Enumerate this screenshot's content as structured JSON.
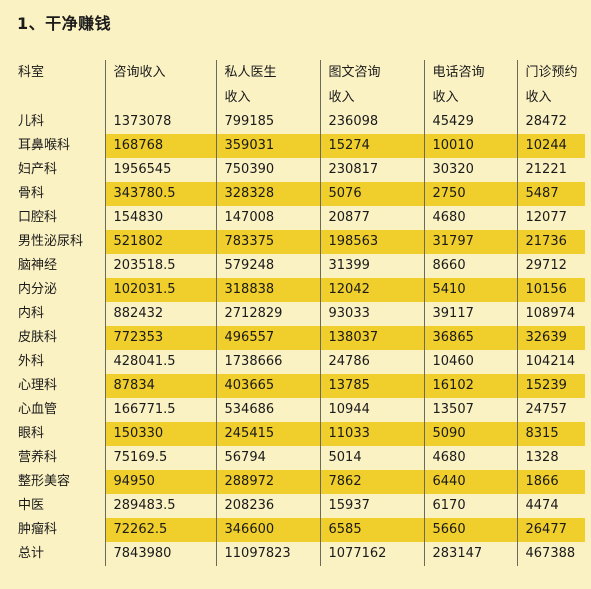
{
  "title": "1、干净赚钱",
  "columns": [
    {
      "line1": "科室",
      "line2": ""
    },
    {
      "line1": "咨询收入",
      "line2": ""
    },
    {
      "line1": "私人医生",
      "line2": "收入"
    },
    {
      "line1": "图文咨询",
      "line2": "收入"
    },
    {
      "line1": "电话咨询",
      "line2": "收入"
    },
    {
      "line1": "门诊预约",
      "line2": "收入"
    }
  ],
  "rows": [
    [
      "儿科",
      "1373078",
      "799185",
      "236098",
      "45429",
      "28472"
    ],
    [
      "耳鼻喉科",
      "168768",
      "359031",
      "15274",
      "10010",
      "10244"
    ],
    [
      "妇产科",
      "1956545",
      "750390",
      "230817",
      "30320",
      "21221"
    ],
    [
      "骨科",
      "343780.5",
      "328328",
      "5076",
      "2750",
      "5487"
    ],
    [
      "口腔科",
      "154830",
      "147008",
      "20877",
      "4680",
      "12077"
    ],
    [
      "男性泌尿科",
      "521802",
      "783375",
      "198563",
      "31797",
      "21736"
    ],
    [
      "脑神经",
      "203518.5",
      "579248",
      "31399",
      "8660",
      "29712"
    ],
    [
      "内分泌",
      "102031.5",
      "318838",
      "12042",
      "5410",
      "10156"
    ],
    [
      "内科",
      "882432",
      "2712829",
      "93033",
      "39117",
      "108974"
    ],
    [
      "皮肤科",
      "772353",
      "496557",
      "138037",
      "36865",
      "32639"
    ],
    [
      "外科",
      "428041.5",
      "1738666",
      "24786",
      "10460",
      "104214"
    ],
    [
      "心理科",
      "87834",
      "403665",
      "13785",
      "16102",
      "15239"
    ],
    [
      "心血管",
      "166771.5",
      "534686",
      "10944",
      "13507",
      "24757"
    ],
    [
      "眼科",
      "150330",
      "245415",
      "11033",
      "5090",
      "8315"
    ],
    [
      "营养科",
      "75169.5",
      "56794",
      "5014",
      "4680",
      "1328"
    ],
    [
      "整形美容",
      "94950",
      "288972",
      "7862",
      "6440",
      "1866"
    ],
    [
      "中医",
      "289483.5",
      "208236",
      "15937",
      "6170",
      "4474"
    ],
    [
      "肿瘤科",
      "72262.5",
      "346600",
      "6585",
      "5660",
      "26477"
    ],
    [
      "总计",
      "7843980",
      "11097823",
      "1077162",
      "283147",
      "467388"
    ]
  ],
  "colors": {
    "background": "#fbf2c4",
    "row_highlight": "#f0cf2c",
    "divider": "#6d6a5a"
  }
}
